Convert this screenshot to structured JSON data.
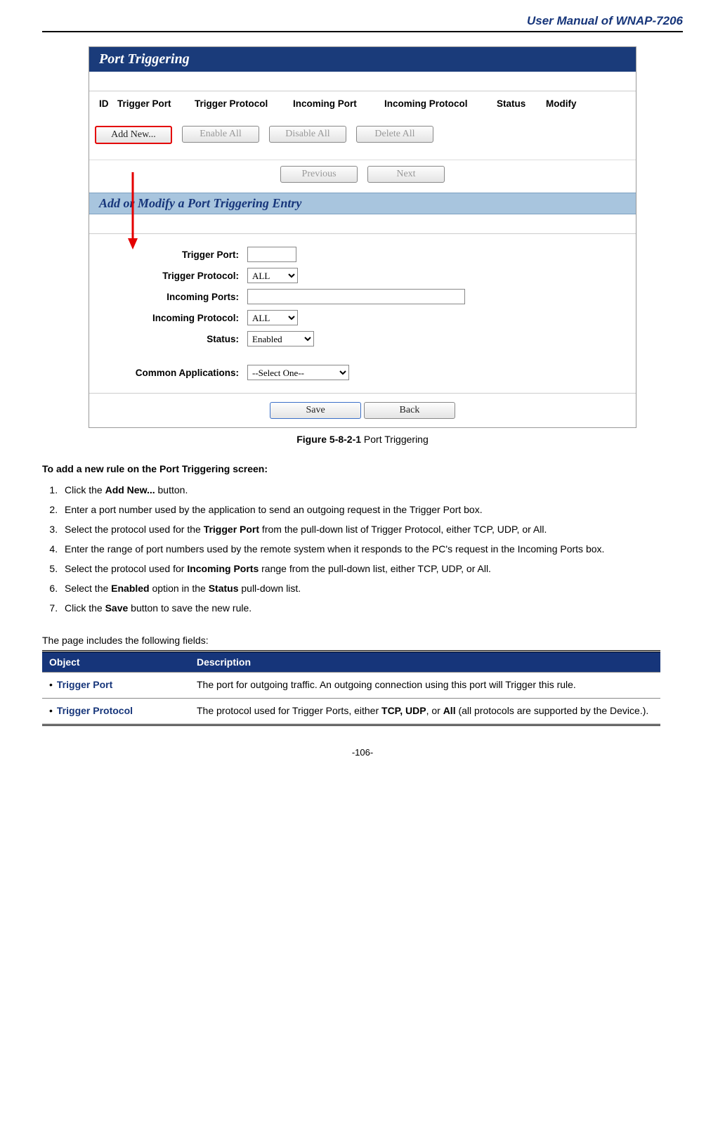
{
  "header": {
    "title": "User Manual of WNAP-7206"
  },
  "screenshot": {
    "panel1_title": "Port Triggering",
    "columns": [
      "ID",
      "Trigger Port",
      "Trigger Protocol",
      "Incoming Port",
      "Incoming Protocol",
      "Status",
      "Modify"
    ],
    "buttons": {
      "add_new": "Add New...",
      "enable_all": "Enable All",
      "disable_all": "Disable All",
      "delete_all": "Delete All",
      "previous": "Previous",
      "next": "Next",
      "save": "Save",
      "back": "Back"
    },
    "panel2_title": "Add or Modify a Port Triggering Entry",
    "form": {
      "trigger_port_label": "Trigger Port:",
      "trigger_protocol_label": "Trigger Protocol:",
      "trigger_protocol_value": "ALL",
      "incoming_ports_label": "Incoming Ports:",
      "incoming_protocol_label": "Incoming Protocol:",
      "incoming_protocol_value": "ALL",
      "status_label": "Status:",
      "status_value": "Enabled",
      "common_app_label": "Common Applications:",
      "common_app_value": "--Select One--"
    }
  },
  "figure": {
    "number": "Figure 5-8-2-1",
    "caption": " Port Triggering"
  },
  "instructions": {
    "heading": "To add a new rule on the Port Triggering screen:",
    "steps_html": [
      "Click the <b>Add New...</b> button.",
      "Enter a port number used by the application to send an outgoing request in the Trigger Port box.",
      "Select the protocol used for the <b>Trigger Port</b> from the pull-down list of Trigger Protocol, either TCP, UDP, or All.",
      "Enter the range of port numbers used by the remote system when it responds to the PC's request in the Incoming Ports box.",
      "Select the protocol used for <b>Incoming Ports</b> range from the pull-down list, either TCP, UDP, or All.",
      "Select the <b>Enabled</b> option in the <b>Status</b> pull-down list.",
      "Click the <b>Save</b> button to save the new rule."
    ]
  },
  "fields": {
    "intro": "The page includes the following fields:",
    "header_obj": "Object",
    "header_desc": "Description",
    "rows": [
      {
        "obj": "Trigger Port",
        "desc": "The port for outgoing traffic. An outgoing connection using this port will Trigger this rule."
      },
      {
        "obj": "Trigger Protocol",
        "desc_html": "The protocol used for Trigger Ports, either <b>TCP, UDP</b>, or <b>All</b> (all protocols are supported by the Device.)."
      }
    ]
  },
  "page_number": "-106-",
  "colors": {
    "brand_blue": "#16357a",
    "panel_dark": "#1a3b7a",
    "panel_light": "#a8c5de",
    "highlight_red": "#e40000"
  }
}
